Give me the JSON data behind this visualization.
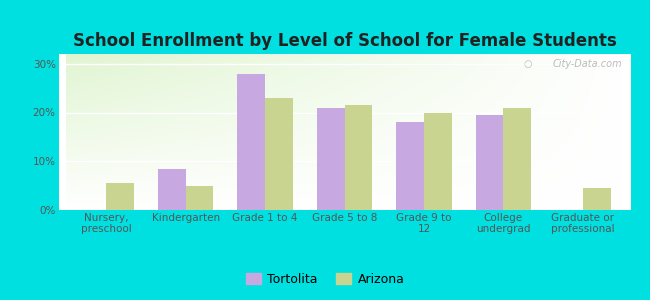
{
  "title": "School Enrollment by Level of School for Female Students",
  "categories": [
    "Nursery,\npreschool",
    "Kindergarten",
    "Grade 1 to 4",
    "Grade 5 to 8",
    "Grade 9 to\n12",
    "College\nundergrad",
    "Graduate or\nprofessional"
  ],
  "tortolita": [
    0,
    8.5,
    28.0,
    21.0,
    18.0,
    19.5,
    0
  ],
  "arizona": [
    5.5,
    5.0,
    23.0,
    21.5,
    20.0,
    21.0,
    4.5
  ],
  "tortolita_color": "#c8a8e0",
  "arizona_color": "#c8d490",
  "background_color": "#00e0e0",
  "ylim": [
    0,
    32
  ],
  "yticks": [
    0,
    10,
    20,
    30
  ],
  "ytick_labels": [
    "0%",
    "10%",
    "20%",
    "30%"
  ],
  "bar_width": 0.35,
  "legend_labels": [
    "Tortolita",
    "Arizona"
  ],
  "watermark": "City-Data.com",
  "title_fontsize": 12,
  "tick_fontsize": 7.5,
  "legend_fontsize": 9
}
